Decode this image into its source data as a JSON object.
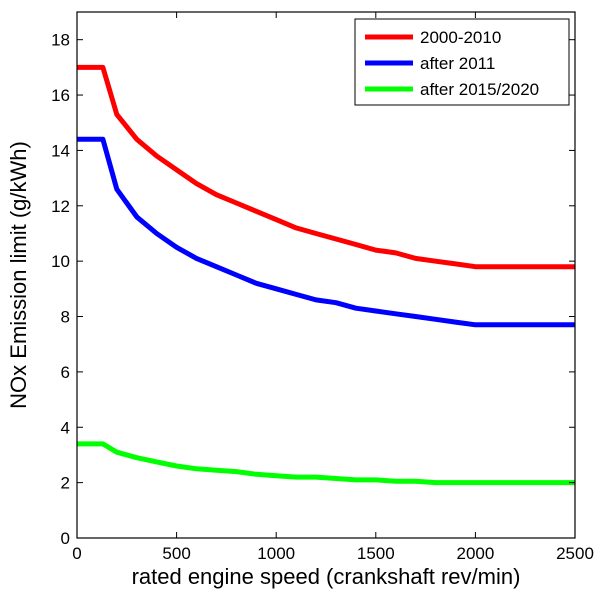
{
  "chart_data": {
    "type": "line",
    "xlabel": "rated engine speed (crankshaft rev/min)",
    "ylabel": "NOx Emission limit (g/kWh)",
    "xlim": [
      0,
      2500
    ],
    "ylim": [
      0,
      19
    ],
    "xticks": [
      0,
      500,
      1000,
      1500,
      2000,
      2500
    ],
    "yticks": [
      0,
      2,
      4,
      6,
      8,
      10,
      12,
      14,
      16,
      18
    ],
    "grid": false,
    "legend": "top-right",
    "series": [
      {
        "name": "2000-2010",
        "color": "#ff0000",
        "x": [
          0,
          130,
          200,
          300,
          400,
          500,
          600,
          700,
          800,
          900,
          1000,
          1100,
          1200,
          1300,
          1400,
          1500,
          1600,
          1700,
          1800,
          1900,
          2000,
          2100,
          2200,
          2300,
          2400,
          2500
        ],
        "y": [
          17.0,
          17.0,
          15.3,
          14.4,
          13.8,
          13.3,
          12.8,
          12.4,
          12.1,
          11.8,
          11.5,
          11.2,
          11.0,
          10.8,
          10.6,
          10.4,
          10.3,
          10.1,
          10.0,
          9.9,
          9.8,
          9.8,
          9.8,
          9.8,
          9.8,
          9.8
        ]
      },
      {
        "name": "after 2011",
        "color": "#0000ff",
        "x": [
          0,
          130,
          200,
          300,
          400,
          500,
          600,
          700,
          800,
          900,
          1000,
          1100,
          1200,
          1300,
          1400,
          1500,
          1600,
          1700,
          1800,
          1900,
          2000,
          2100,
          2200,
          2300,
          2400,
          2500
        ],
        "y": [
          14.4,
          14.4,
          12.6,
          11.6,
          11.0,
          10.5,
          10.1,
          9.8,
          9.5,
          9.2,
          9.0,
          8.8,
          8.6,
          8.5,
          8.3,
          8.2,
          8.1,
          8.0,
          7.9,
          7.8,
          7.7,
          7.7,
          7.7,
          7.7,
          7.7,
          7.7
        ]
      },
      {
        "name": "after 2015/2020",
        "color": "#00ff00",
        "x": [
          0,
          130,
          200,
          300,
          400,
          500,
          600,
          700,
          800,
          900,
          1000,
          1100,
          1200,
          1300,
          1400,
          1500,
          1600,
          1700,
          1800,
          1900,
          2000,
          2100,
          2200,
          2300,
          2400,
          2500
        ],
        "y": [
          3.4,
          3.4,
          3.1,
          2.9,
          2.75,
          2.6,
          2.5,
          2.45,
          2.4,
          2.3,
          2.25,
          2.2,
          2.2,
          2.15,
          2.1,
          2.1,
          2.05,
          2.05,
          2.0,
          2.0,
          2.0,
          2.0,
          2.0,
          2.0,
          2.0,
          2.0
        ]
      }
    ]
  }
}
